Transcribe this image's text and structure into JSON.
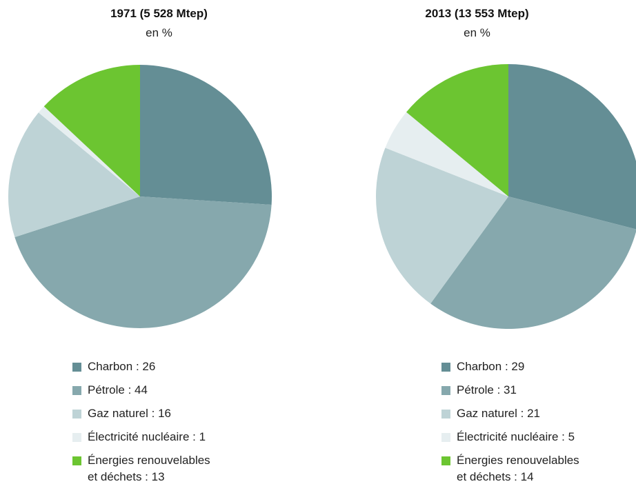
{
  "chart_data": [
    {
      "type": "pie",
      "title": "1971 (5 528 Mtep)",
      "subtitle": "en %",
      "label_separator": " : ",
      "categories": [
        "Charbon",
        "Pétrole",
        "Gaz naturel",
        "Électricité nucléaire",
        "Énergies renouvelables\net déchets"
      ],
      "values": [
        26,
        44,
        16,
        1,
        13
      ],
      "colors": [
        "#648e95",
        "#86a8ad",
        "#bed3d6",
        "#e6eef0",
        "#6cc531"
      ]
    },
    {
      "type": "pie",
      "title": "2013 (13 553 Mtep)",
      "subtitle": "en %",
      "label_separator": " : ",
      "categories": [
        "Charbon",
        "Pétrole",
        "Gaz naturel",
        "Électricité nucléaire",
        "Énergies renouvelables\net déchets"
      ],
      "values": [
        29,
        31,
        21,
        5,
        14
      ],
      "colors": [
        "#648e95",
        "#86a8ad",
        "#bed3d6",
        "#e6eef0",
        "#6cc531"
      ]
    }
  ]
}
